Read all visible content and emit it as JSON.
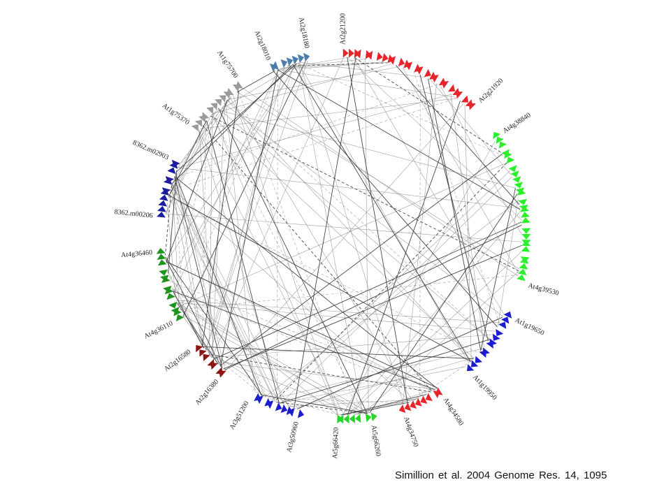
{
  "segments": [
    {
      "start": "At2g21200",
      "end": "At2g21920",
      "color": "#e8242a"
    },
    {
      "start": "At4g38840",
      "end": "At4g39530",
      "color": "#2cf02c"
    },
    {
      "start": "At1g19650",
      "end": "At1g19950",
      "color": "#1c1cd0"
    },
    {
      "start": "At4g34580",
      "end": "At4g34750",
      "color": "#e8242a"
    },
    {
      "start": "At5g66260",
      "end": "At5g66420",
      "color": "#26d626"
    },
    {
      "start": "At3g50960",
      "end": "At3g51200",
      "color": "#1c1cd0"
    },
    {
      "start": "At2g16380",
      "end": "At2g16580",
      "color": "#8e1414"
    },
    {
      "start": "At4g36110",
      "end": "At4g36460",
      "color": "#1e941e"
    },
    {
      "start": "8362.m00206",
      "end": "8362.m02903",
      "color": "#1c1ca0"
    },
    {
      "start": "At1g75370",
      "end": "At1g75700",
      "color": "#9a9a9a"
    },
    {
      "start": "At2g18010",
      "end": "At2g18180",
      "color": "#4a7cac"
    }
  ],
  "citation": "Simillion et al. 2004 Genome Res. 14, 1095"
}
